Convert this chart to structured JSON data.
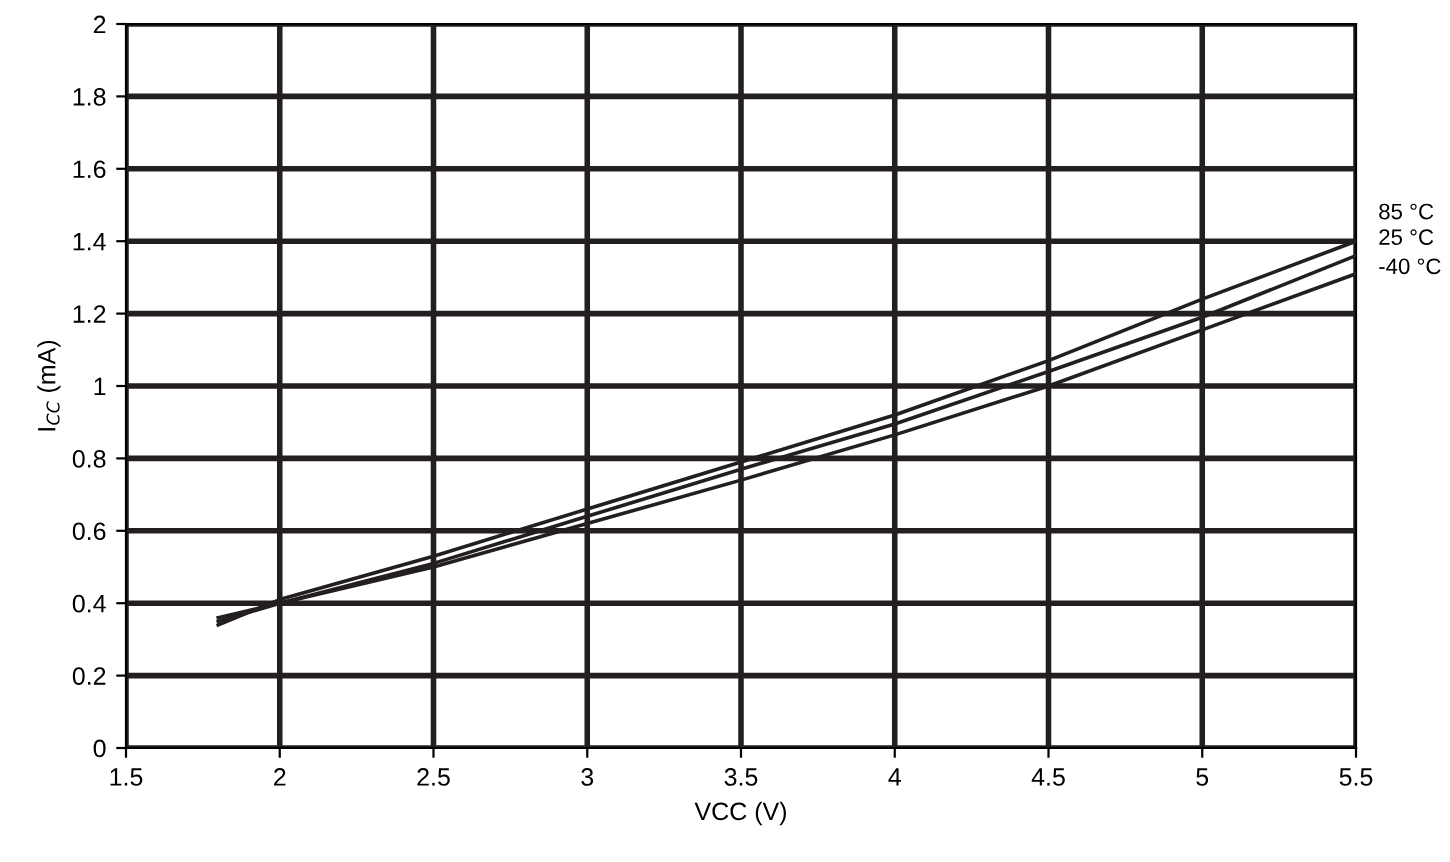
{
  "chart_data": {
    "type": "line",
    "xlabel": "VCC (V)",
    "ylabel": "I$_{CC}$ (mA)",
    "x": [
      1.8,
      2,
      2.5,
      3,
      3.5,
      4,
      4.5,
      5,
      5.5
    ],
    "series": [
      {
        "name": "85 °C",
        "color": "#231f20",
        "values": [
          0.34,
          0.41,
          0.53,
          0.66,
          0.79,
          0.92,
          1.07,
          1.24,
          1.4
        ]
      },
      {
        "name": "25 °C",
        "color": "#231f20",
        "values": [
          0.35,
          0.4,
          0.51,
          0.64,
          0.77,
          0.895,
          1.04,
          1.19,
          1.36
        ]
      },
      {
        "name": "-40 °C",
        "color": "#231f20",
        "values": [
          0.36,
          0.4,
          0.5,
          0.62,
          0.74,
          0.865,
          1.0,
          1.155,
          1.31
        ]
      }
    ],
    "xlim": [
      1.5,
      5.5
    ],
    "xticks": [
      1.5,
      2,
      2.5,
      3,
      3.5,
      4,
      4.5,
      5,
      5.5
    ],
    "ylim": [
      0,
      2
    ],
    "yticks": [
      0,
      0.2,
      0.4,
      0.6,
      0.8,
      1,
      1.2,
      1.4,
      1.6,
      1.8,
      2
    ],
    "grid": true,
    "marker": "none",
    "line_style": "solid"
  }
}
